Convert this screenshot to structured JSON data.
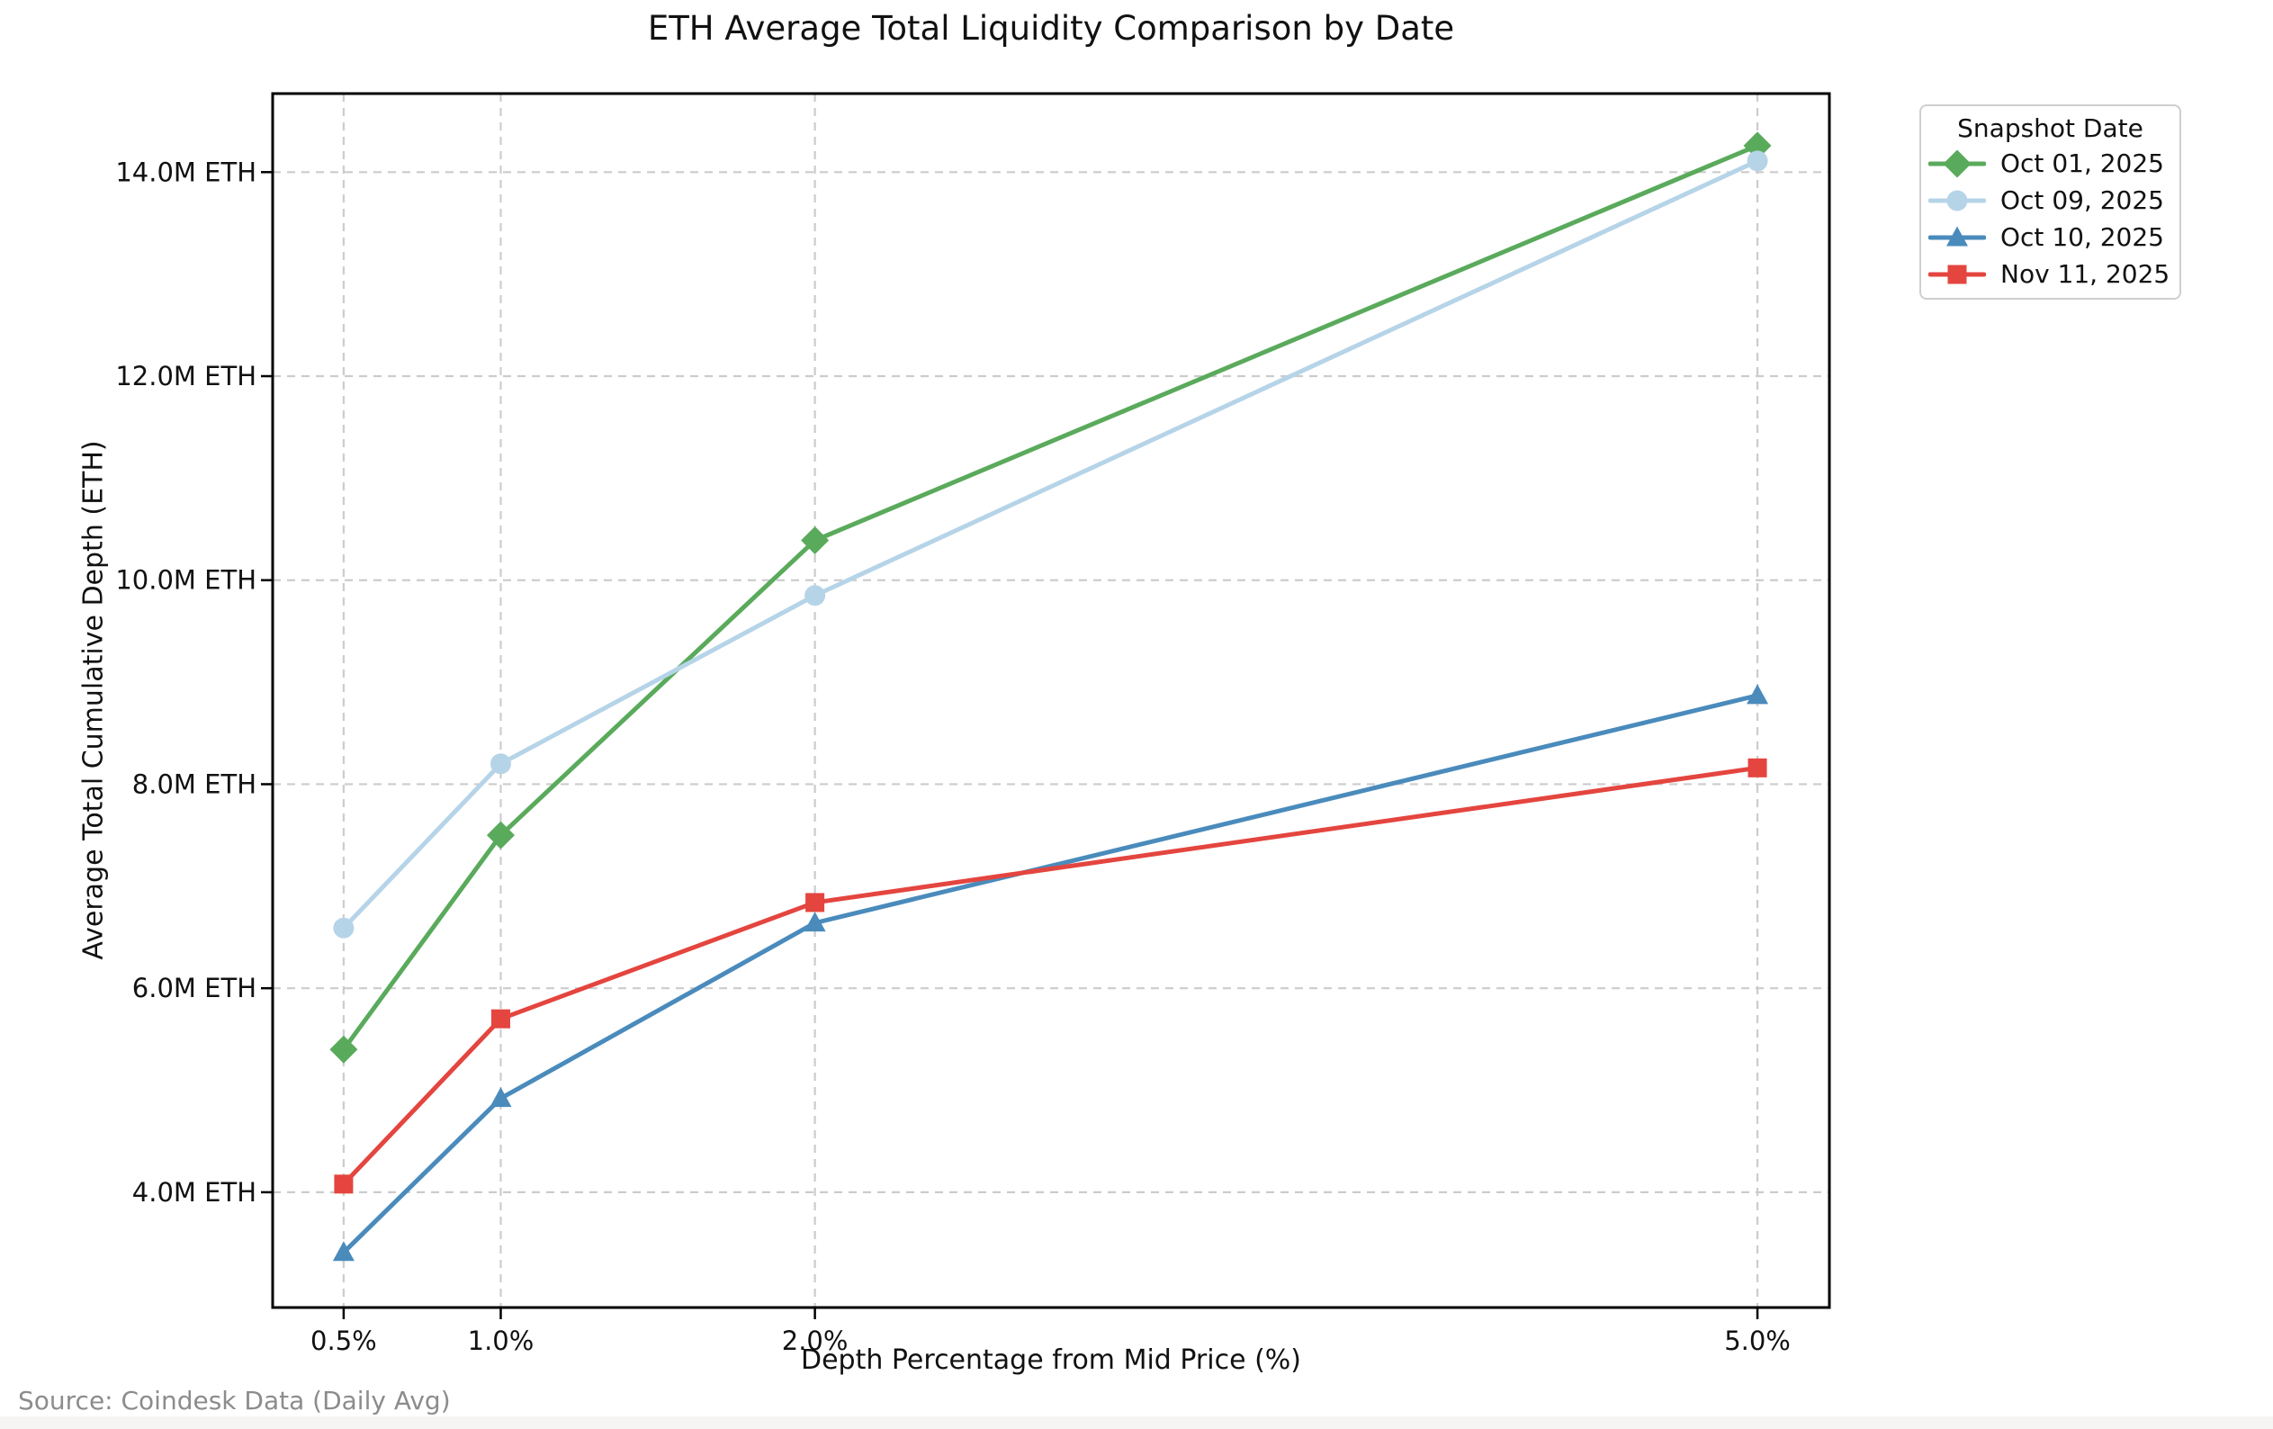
{
  "page": {
    "title": "ETH Average Total Liquidity Comparison by Date",
    "source_note": "Source: Coindesk Data (Daily Avg)"
  },
  "chart_data": {
    "type": "line",
    "title": "ETH Average Total Liquidity Comparison by Date",
    "xlabel": "Depth Percentage from Mid Price (%)",
    "ylabel": "Average Total Cumulative Depth (ETH)",
    "unit": "M ETH",
    "x": [
      0.5,
      1.0,
      2.0,
      5.0
    ],
    "x_tick_labels": [
      "0.5%",
      "1.0%",
      "2.0%",
      "5.0%"
    ],
    "y_ticks": [
      4,
      6,
      8,
      10,
      12,
      14
    ],
    "y_tick_labels": [
      "4.0M ETH",
      "6.0M ETH",
      "8.0M ETH",
      "10.0M ETH",
      "12.0M ETH",
      "14.0M ETH"
    ],
    "xlim": [
      0.274,
      5.229
    ],
    "ylim": [
      2.87,
      14.77
    ],
    "grid": true,
    "grid_style": "dashed",
    "legend": {
      "title": "Snapshot Date",
      "position": "outside-upper-right"
    },
    "series": [
      {
        "name": "Oct 01, 2025",
        "color": "#5aaa5c",
        "marker": "diamond",
        "values": [
          5.4,
          7.5,
          10.39,
          14.26
        ]
      },
      {
        "name": "Oct 09, 2025",
        "color": "#b6d4e8",
        "marker": "circle",
        "values": [
          6.59,
          8.2,
          9.85,
          14.11
        ]
      },
      {
        "name": "Oct 10, 2025",
        "color": "#4a8bbc",
        "marker": "triangle-up",
        "values": [
          3.41,
          4.92,
          6.64,
          8.87
        ]
      },
      {
        "name": "Nov 11, 2025",
        "color": "#e4453f",
        "marker": "square",
        "values": [
          4.08,
          5.7,
          6.84,
          8.16
        ]
      }
    ],
    "colors": {
      "grid": "#cccccc",
      "spine": "#000000",
      "text": "#111111",
      "source_text": "#8c8c8c"
    }
  }
}
